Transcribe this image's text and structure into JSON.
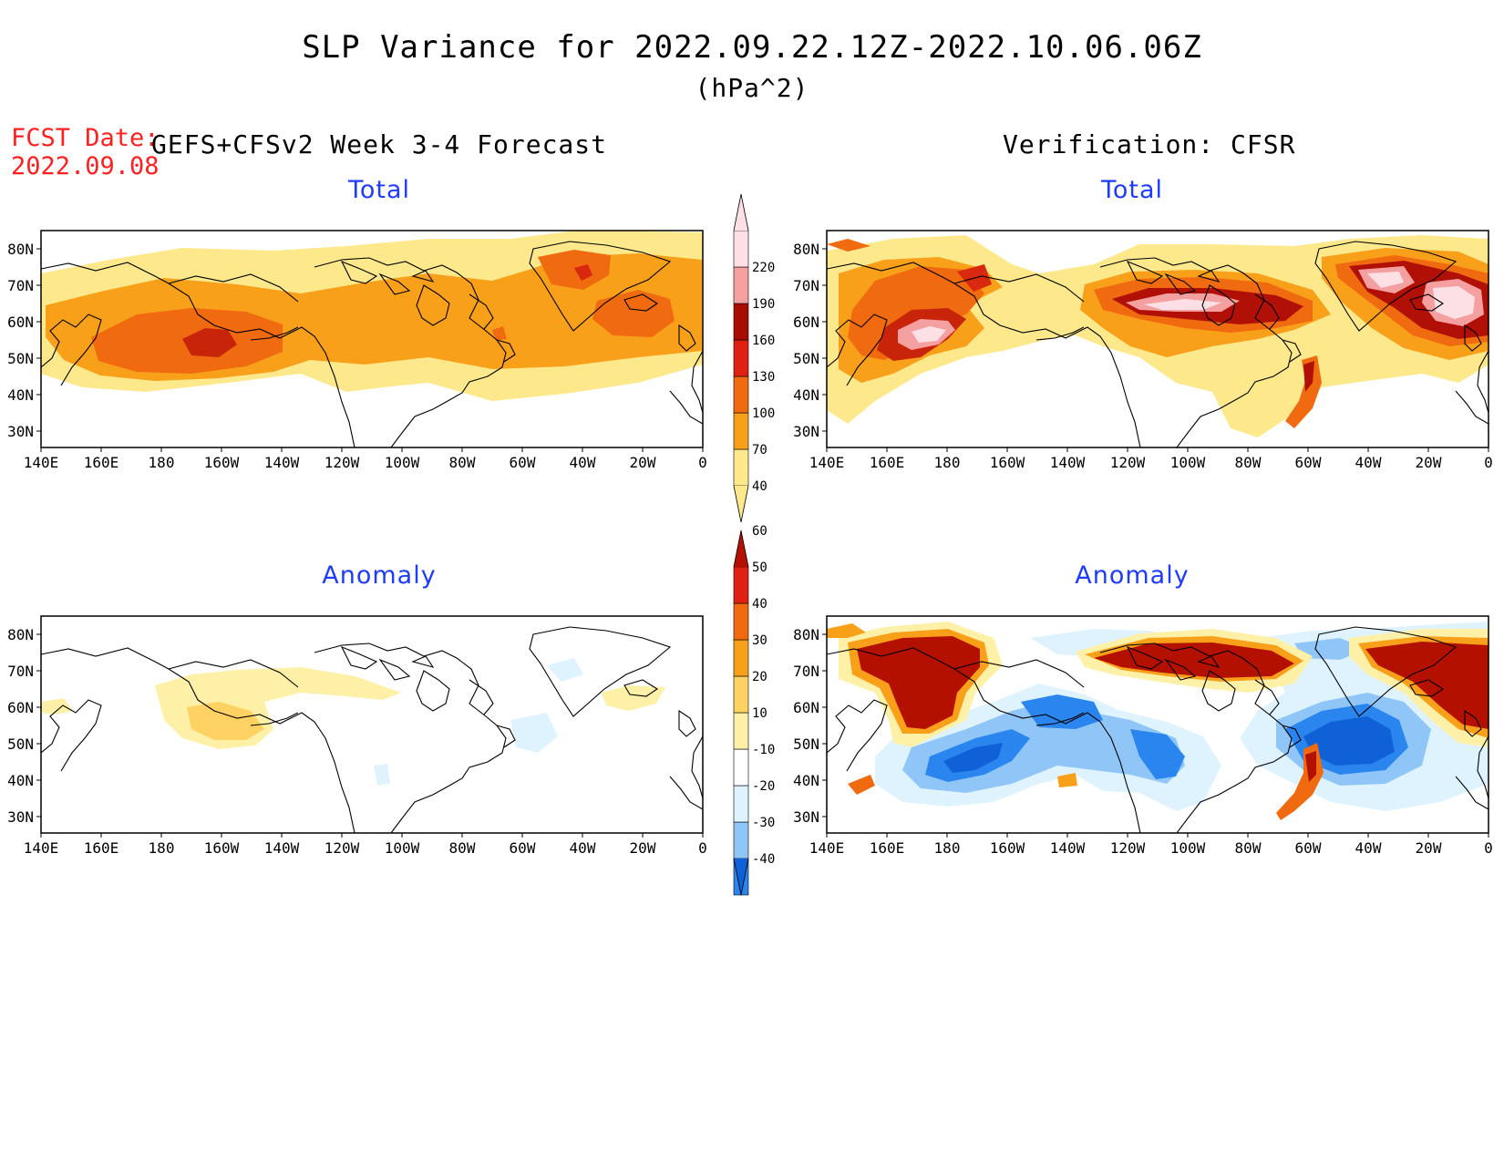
{
  "header": {
    "title": "SLP Variance for 2022.09.22.12Z-2022.10.06.06Z",
    "units": "(hPa^2)",
    "fcst_label": "FCST Date:",
    "fcst_date": "2022.09.08",
    "model_label": "GEFS+CFSv2 Week 3-4 Forecast",
    "verification_label": "Verification: CFSR"
  },
  "panels": {
    "forecast_total": {
      "title": "Total"
    },
    "verif_total": {
      "title": "Total"
    },
    "forecast_anomaly": {
      "title": "Anomaly"
    },
    "verif_anomaly": {
      "title": "Anomaly"
    }
  },
  "axes": {
    "x_ticks": [
      "140E",
      "160E",
      "180",
      "160W",
      "140W",
      "120W",
      "100W",
      "80W",
      "60W",
      "40W",
      "20W",
      "0"
    ],
    "y_ticks": [
      "80N",
      "70N",
      "60N",
      "50N",
      "40N",
      "30N"
    ]
  },
  "colorbars": {
    "total": {
      "levels": [
        "40",
        "70",
        "100",
        "130",
        "160",
        "190",
        "220"
      ],
      "colors": [
        "#fde98c",
        "#f9a01a",
        "#f06a10",
        "#e02010",
        "#a80d00",
        "#f5a0a0",
        "#fde0e6"
      ]
    },
    "anomaly": {
      "levels": [
        "-40",
        "-30",
        "-20",
        "-10",
        "10",
        "20",
        "30",
        "40",
        "50",
        "60"
      ],
      "colors": [
        "#1060d8",
        "#2a86ee",
        "#8fc6f7",
        "#dff3ff",
        "#ffffff",
        "#fff0a8",
        "#fdd262",
        "#f9a01a",
        "#f06a10",
        "#e02010",
        "#b41000"
      ]
    }
  },
  "colors": {
    "fcst_date": "#ff2020",
    "panel_title": "#1e3cff"
  }
}
